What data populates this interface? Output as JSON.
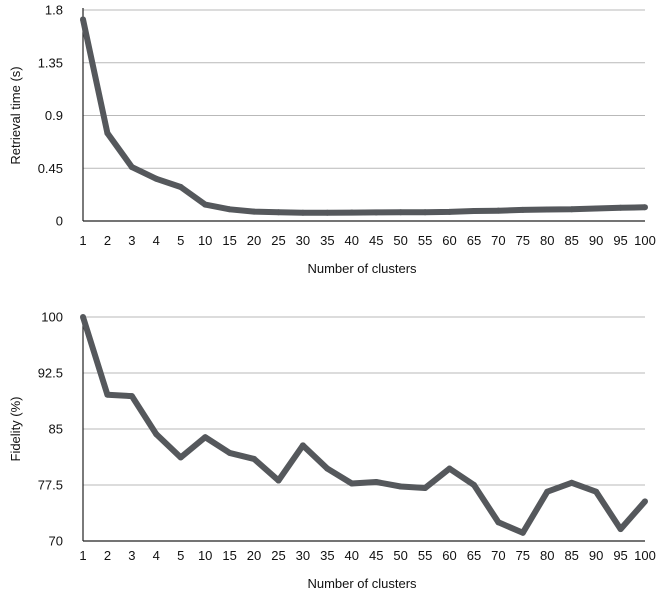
{
  "chart_data": [
    {
      "type": "line",
      "categories": [
        "1",
        "2",
        "3",
        "4",
        "5",
        "10",
        "15",
        "20",
        "25",
        "30",
        "35",
        "40",
        "45",
        "50",
        "55",
        "60",
        "65",
        "70",
        "75",
        "80",
        "85",
        "90",
        "95",
        "100"
      ],
      "series": [
        {
          "values": [
            1.72,
            0.75,
            0.46,
            0.36,
            0.29,
            0.14,
            0.1,
            0.08,
            0.075,
            0.07,
            0.07,
            0.072,
            0.073,
            0.075,
            0.075,
            0.078,
            0.085,
            0.088,
            0.095,
            0.098,
            0.1,
            0.107,
            0.113,
            0.117
          ],
          "color": "#55585c"
        }
      ],
      "xlabel": "Number of clusters",
      "ylabel": "Retrieval time (s)",
      "ylim": [
        0,
        1.8
      ],
      "yticks": [
        "0",
        "0.45",
        "0.9",
        "1.35",
        "1.8"
      ],
      "grid": true
    },
    {
      "type": "line",
      "categories": [
        "1",
        "2",
        "3",
        "4",
        "5",
        "10",
        "15",
        "20",
        "25",
        "30",
        "35",
        "40",
        "45",
        "50",
        "55",
        "60",
        "65",
        "70",
        "75",
        "80",
        "85",
        "90",
        "95",
        "100"
      ],
      "series": [
        {
          "values": [
            100,
            89.6,
            89.4,
            84.3,
            81.2,
            83.9,
            81.8,
            81.0,
            78.1,
            82.8,
            79.7,
            77.7,
            77.9,
            77.3,
            77.1,
            79.7,
            77.5,
            72.5,
            71.1,
            76.6,
            77.8,
            76.6,
            71.6,
            75.3
          ],
          "color": "#55585c"
        }
      ],
      "xlabel": "Number of clusters",
      "ylabel": "Fidelity (%)",
      "ylim": [
        70,
        100
      ],
      "yticks": [
        "70",
        "77.5",
        "85",
        "92.5",
        "100"
      ],
      "grid": true
    }
  ]
}
